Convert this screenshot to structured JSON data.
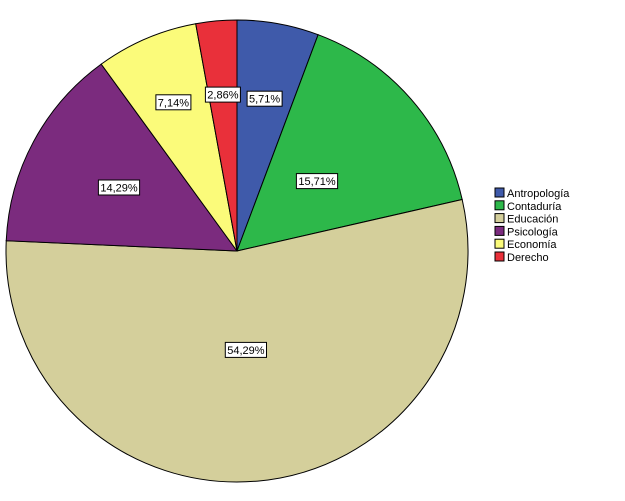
{
  "chart_data": {
    "type": "pie",
    "categories": [
      "Antropología",
      "Contaduría",
      "Educación",
      "Psicología",
      "Economía",
      "Derecho"
    ],
    "values": [
      5.71,
      15.71,
      54.29,
      14.29,
      7.14,
      2.86
    ],
    "data_labels": [
      "5,71%",
      "15,71%",
      "54,29%",
      "14,29%",
      "7,14%",
      "2,86%"
    ],
    "colors": [
      "#3f5aaa",
      "#2db84a",
      "#d4cf9b",
      "#7b2b7e",
      "#fbfb7a",
      "#e9303a"
    ],
    "legend_position": "right",
    "start_angle": "top",
    "direction": "clockwise"
  }
}
